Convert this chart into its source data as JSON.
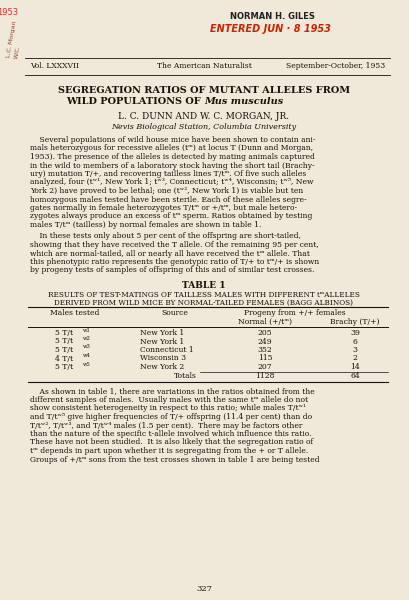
{
  "page_bg": "#f0e8d8",
  "stamp_color": "#cc2200",
  "stamp_name": "NORMAN H. GILES",
  "stamp_entered": "ENTERED JUN · 8 1953",
  "header_vol": "Vol. LXXXVII",
  "header_journal": "The American Naturalist",
  "header_date": "September-October, 1953",
  "title_line1": "SEGREGATION RATIOS OF MUTANT ALLELES FROM",
  "title_line2": "WILD POPULATIONS OF ",
  "title_italic": "Mus musculus",
  "authors": "L. C. DUNN AND W. C. MORGAN, JR.",
  "affiliation": "Nevis Biological Station, Columbia University",
  "abstract_indent": "    Several populations of wild house mice have been shown to contain animals heterozygous for recessive alleles (t",
  "abstract_rest": ") at locus T (Dunn and Morgan, 1953). The presence of the alleles is detected by mating animals captured in the wild to members of a laboratory stock having the short tail (Brachy-ury) mutation T/+, and recovering tailless lines T/t",
  "para2_indent": "    In these tests only about 5 per cent of the offspring are short-tailed, showing that they have received the T allele. Of the remaining 95 per cent, which are normal-tailed, all or nearly all have received the t",
  "table_title": "TABLE 1",
  "table_subtitle1": "RESULTS OF TEST-MATINGS OF TAILLESS MALES WITH DIFFERENT t",
  "table_subtitle1b": "ALLELES",
  "table_subtitle2": "DERIVED FROM WILD MICE BY NORMAL-TAILED FEMALES (BAGG ALBINOS)",
  "col_males": "Males tested",
  "col_source": "Source",
  "col_progeny": "Progeny from +/+ females",
  "col_normal": "Normal (+/t",
  "col_brachy": "Brachy (T/+)",
  "rows": [
    [
      "5 T/t",
      "w1",
      "New York 1",
      "205",
      "39"
    ],
    [
      "5 T/t",
      "w2",
      "New York 1",
      "249",
      "6"
    ],
    [
      "5 T/t",
      "w3",
      "Connecticut 1",
      "352",
      "3"
    ],
    [
      "4 T/t",
      "w4",
      "Wisconsin 3",
      "115",
      "2"
    ],
    [
      "5 T/t",
      "w5",
      "New York 2",
      "207",
      "14"
    ]
  ],
  "totals_label": "Totals",
  "totals_normal": "1128",
  "totals_brachy": "64",
  "para3_text": "    As shown in table 1, there are variations in the ratios obtained from the different samples of males.  Usually males with the same t",
  "page_number": "327",
  "text_color": "#18100a",
  "line_color": "#18100a"
}
